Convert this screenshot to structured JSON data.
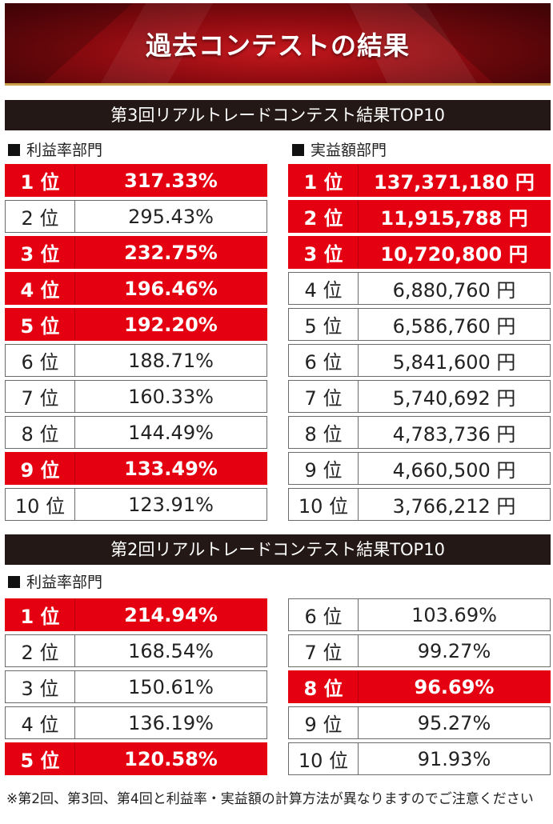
{
  "banner": {
    "title": "過去コンテストの結果"
  },
  "contest3": {
    "header": "第3回リアルトレードコンテスト結果TOP10",
    "profit_rate": {
      "label": "利益率部門",
      "rows": [
        {
          "rank": "1 位",
          "value": "317.33%",
          "highlight": true
        },
        {
          "rank": "2 位",
          "value": "295.43%",
          "highlight": false
        },
        {
          "rank": "3 位",
          "value": "232.75%",
          "highlight": true
        },
        {
          "rank": "4 位",
          "value": "196.46%",
          "highlight": true
        },
        {
          "rank": "5 位",
          "value": "192.20%",
          "highlight": true
        },
        {
          "rank": "6 位",
          "value": "188.71%",
          "highlight": false
        },
        {
          "rank": "7 位",
          "value": "160.33%",
          "highlight": false
        },
        {
          "rank": "8 位",
          "value": "144.49%",
          "highlight": false
        },
        {
          "rank": "9 位",
          "value": "133.49%",
          "highlight": true
        },
        {
          "rank": "10 位",
          "value": "123.91%",
          "highlight": false
        }
      ]
    },
    "profit_amount": {
      "label": "実益額部門",
      "rows": [
        {
          "rank": "1 位",
          "value": "137,371,180 円",
          "highlight": true
        },
        {
          "rank": "2 位",
          "value": "11,915,788 円",
          "highlight": true
        },
        {
          "rank": "3 位",
          "value": "10,720,800 円",
          "highlight": true
        },
        {
          "rank": "4 位",
          "value": "6,880,760 円",
          "highlight": false
        },
        {
          "rank": "5 位",
          "value": "6,586,760 円",
          "highlight": false
        },
        {
          "rank": "6 位",
          "value": "5,841,600 円",
          "highlight": false
        },
        {
          "rank": "7 位",
          "value": "5,740,692 円",
          "highlight": false
        },
        {
          "rank": "8 位",
          "value": "4,783,736 円",
          "highlight": false
        },
        {
          "rank": "9 位",
          "value": "4,660,500 円",
          "highlight": false
        },
        {
          "rank": "10 位",
          "value": "3,766,212 円",
          "highlight": false
        }
      ]
    }
  },
  "contest2": {
    "header": "第2回リアルトレードコンテスト結果TOP10",
    "profit_rate": {
      "label": "利益率部門",
      "rows_left": [
        {
          "rank": "1 位",
          "value": "214.94%",
          "highlight": true
        },
        {
          "rank": "2 位",
          "value": "168.54%",
          "highlight": false
        },
        {
          "rank": "3 位",
          "value": "150.61%",
          "highlight": false
        },
        {
          "rank": "4 位",
          "value": "136.19%",
          "highlight": false
        },
        {
          "rank": "5 位",
          "value": "120.58%",
          "highlight": true
        }
      ],
      "rows_right": [
        {
          "rank": "6 位",
          "value": "103.69%",
          "highlight": false
        },
        {
          "rank": "7 位",
          "value": "99.27%",
          "highlight": false
        },
        {
          "rank": "8 位",
          "value": "96.69%",
          "highlight": true
        },
        {
          "rank": "9 位",
          "value": "95.27%",
          "highlight": false
        },
        {
          "rank": "10 位",
          "value": "91.93%",
          "highlight": false
        }
      ]
    }
  },
  "footnote": "※第2回、第3回、第4回と利益率・実益額の計算方法が異なりますのでご注意ください"
}
